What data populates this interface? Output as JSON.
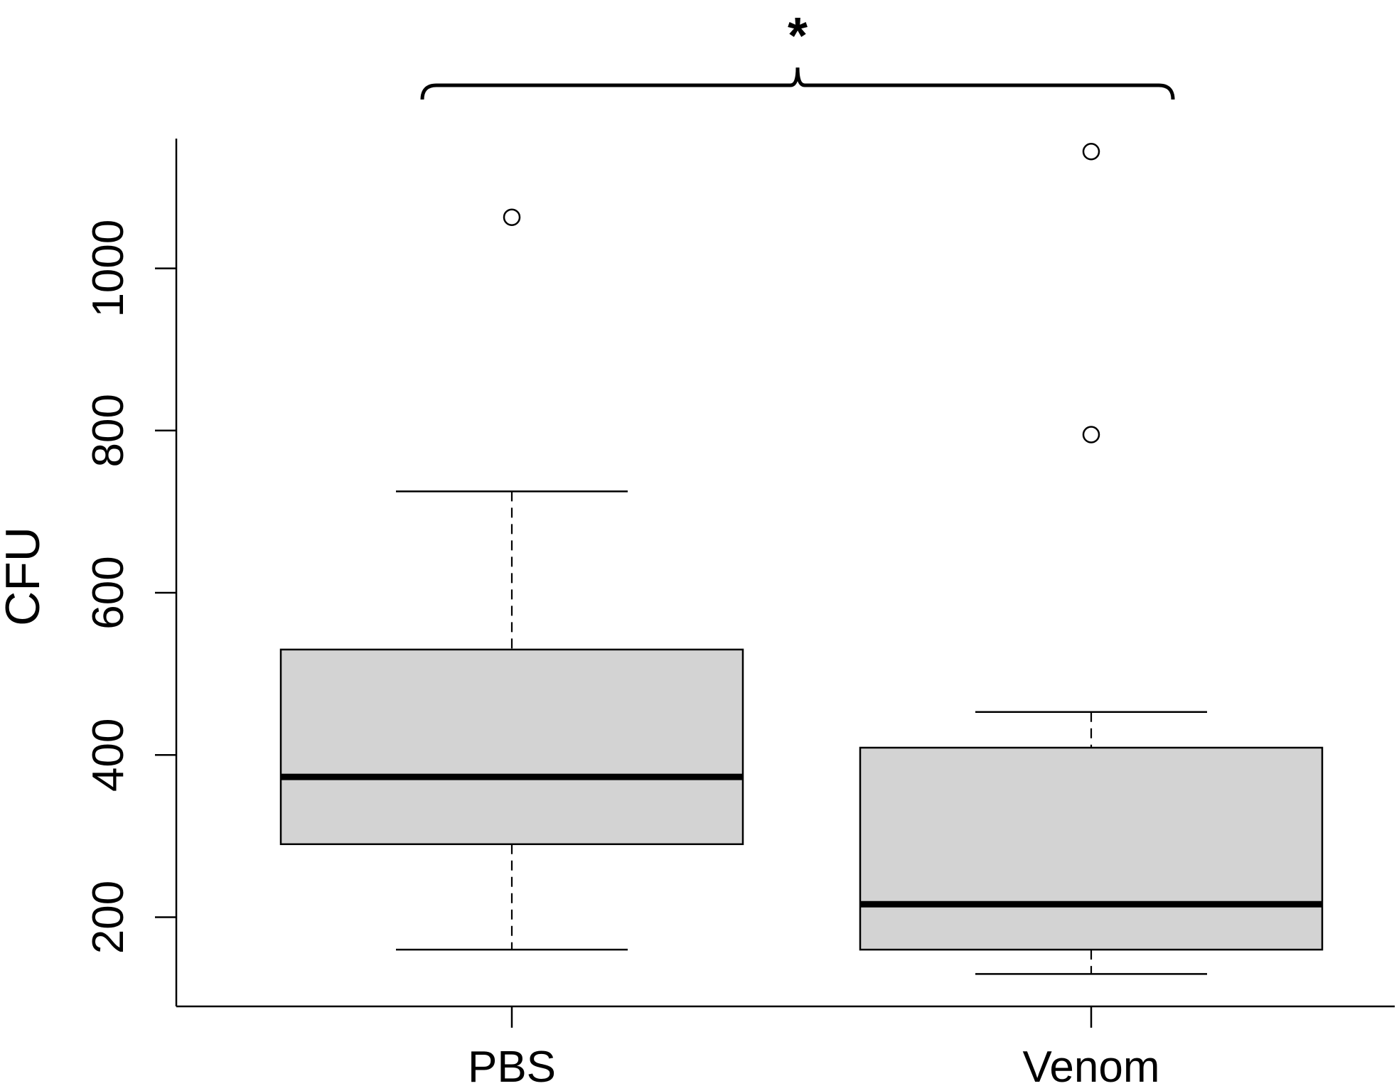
{
  "chart_data": {
    "type": "box",
    "ylabel": "CFU",
    "xlabel": "",
    "ylim": [
      90,
      1160
    ],
    "y_ticks": [
      200,
      400,
      600,
      800,
      1000
    ],
    "y_tick_labels": [
      "200",
      "400",
      "600",
      "800",
      "1000"
    ],
    "categories": [
      "PBS",
      "Venom"
    ],
    "boxes": [
      {
        "category": "PBS",
        "whisker_low": 160,
        "q1": 290,
        "median": 373,
        "q3": 530,
        "whisker_high": 725,
        "outliers": [
          1063
        ]
      },
      {
        "category": "Venom",
        "whisker_low": 130,
        "q1": 160,
        "median": 216,
        "q3": 409,
        "whisker_high": 453,
        "outliers": [
          1144,
          795
        ]
      }
    ],
    "significance": {
      "label": "*",
      "between": [
        "PBS",
        "Venom"
      ]
    },
    "colors": {
      "box_fill": "#d3d3d3",
      "line": "#000000"
    }
  }
}
